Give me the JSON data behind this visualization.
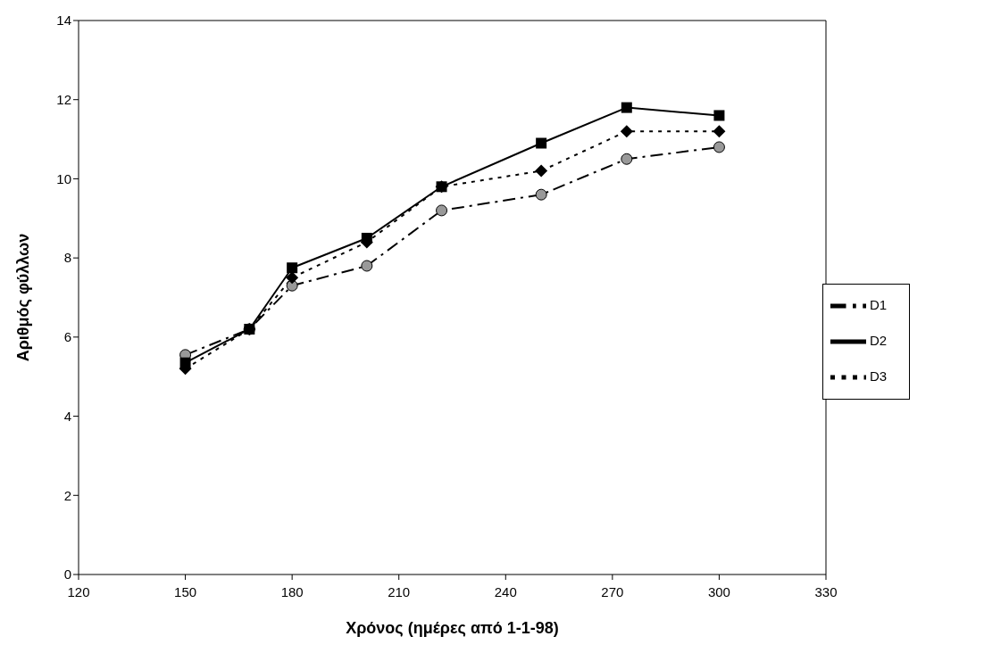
{
  "chart_data": {
    "type": "line",
    "xlabel": "Χρόνος (ημέρες από 1-1-98)",
    "ylabel": "Αριθμός φύλλων",
    "x": [
      150,
      168,
      180,
      201,
      222,
      250,
      274,
      300
    ],
    "series": [
      {
        "name": "D1",
        "color": "#000000",
        "marker": "circle",
        "line_style": "dashed",
        "values": [
          5.55,
          6.2,
          7.3,
          7.8,
          9.2,
          9.6,
          10.5,
          10.8
        ]
      },
      {
        "name": "D2",
        "color": "#000000",
        "marker": "square",
        "line_style": "solid",
        "values": [
          5.35,
          6.2,
          7.75,
          8.5,
          9.8,
          10.9,
          11.8,
          11.6
        ]
      },
      {
        "name": "D3",
        "color": "#000000",
        "marker": "diamond",
        "line_style": "dotted",
        "values": [
          5.2,
          6.2,
          7.5,
          8.4,
          9.8,
          10.2,
          11.2,
          11.2
        ]
      }
    ],
    "xlim": [
      120,
      330
    ],
    "xticks": [
      120,
      150,
      180,
      210,
      240,
      270,
      300,
      330
    ],
    "ylim": [
      0,
      14
    ],
    "yticks": [
      0,
      2,
      4,
      6,
      8,
      10,
      12,
      14
    ],
    "grid": false,
    "legend": "right"
  }
}
